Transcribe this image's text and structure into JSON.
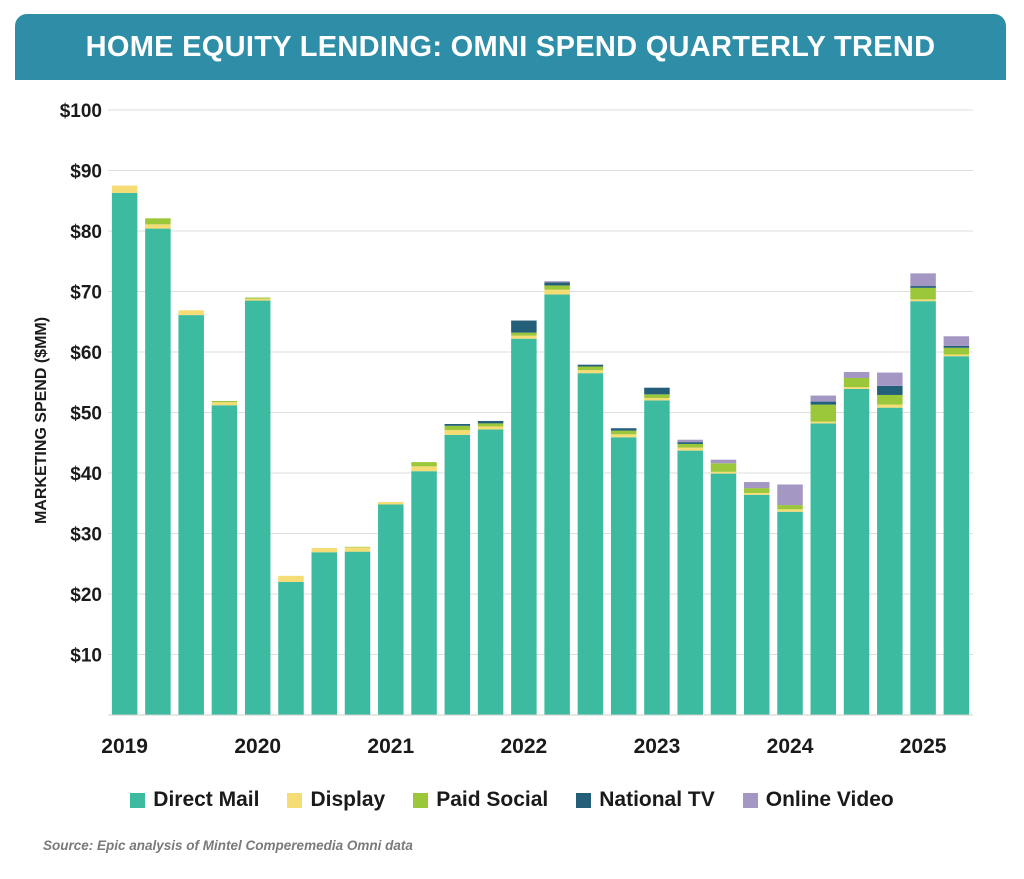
{
  "header": {
    "title": "HOME EQUITY LENDING: OMNI SPEND QUARTERLY TREND"
  },
  "source": "Source: Epic analysis of Mintel Comperemedia Omni data",
  "legend": [
    {
      "label": "Direct Mail",
      "color": "#3dbba0"
    },
    {
      "label": "Display",
      "color": "#f5dc74"
    },
    {
      "label": "Paid Social",
      "color": "#9bc83a"
    },
    {
      "label": "National TV",
      "color": "#235f78"
    },
    {
      "label": "Online Video",
      "color": "#a497c4"
    }
  ],
  "chart_data": {
    "type": "bar",
    "stacked": true,
    "title": "HOME EQUITY LENDING: OMNI SPEND QUARTERLY TREND",
    "xlabel": "",
    "ylabel": "MARKETING SPEND ($MM)",
    "ylim": [
      0,
      100
    ],
    "yticks": [
      10,
      20,
      30,
      40,
      50,
      60,
      70,
      80,
      90,
      100
    ],
    "ytick_labels": [
      "$10",
      "$20",
      "$30",
      "$40",
      "$50",
      "$60",
      "$70",
      "$80",
      "$90",
      "$100"
    ],
    "grid": true,
    "legend_position": "bottom",
    "categories": [
      "2019 Q1",
      "2019 Q2",
      "2019 Q3",
      "2019 Q4",
      "2020 Q1",
      "2020 Q2",
      "2020 Q3",
      "2020 Q4",
      "2021 Q1",
      "2021 Q2",
      "2021 Q3",
      "2021 Q4",
      "2022 Q1",
      "2022 Q2",
      "2022 Q3",
      "2022 Q4",
      "2023 Q1",
      "2023 Q2",
      "2023 Q3",
      "2023 Q4",
      "2024 Q1",
      "2024 Q2",
      "2024 Q3",
      "2024 Q4",
      "2025 Q1",
      "2025 Q2"
    ],
    "x_tick_labels": [
      {
        "label": "2019",
        "index": 0
      },
      {
        "label": "2020",
        "index": 4
      },
      {
        "label": "2021",
        "index": 8
      },
      {
        "label": "2022",
        "index": 12
      },
      {
        "label": "2023",
        "index": 16
      },
      {
        "label": "2024",
        "index": 20
      },
      {
        "label": "2025",
        "index": 24
      }
    ],
    "series": [
      {
        "name": "Direct Mail",
        "color": "#3dbba0",
        "values": [
          86.3,
          80.4,
          66.1,
          51.2,
          68.5,
          22.0,
          26.9,
          27.0,
          34.8,
          40.3,
          46.3,
          47.2,
          62.2,
          69.5,
          56.5,
          45.9,
          52.0,
          43.7,
          39.9,
          36.4,
          33.6,
          48.2,
          53.9,
          50.8,
          68.4,
          59.3
        ]
      },
      {
        "name": "Display",
        "color": "#f5dc74",
        "values": [
          1.2,
          0.7,
          0.8,
          0.5,
          0.3,
          1.0,
          0.7,
          0.7,
          0.4,
          0.8,
          0.8,
          0.5,
          0.5,
          0.8,
          0.5,
          0.5,
          0.4,
          0.5,
          0.3,
          0.3,
          0.4,
          0.3,
          0.3,
          0.5,
          0.3,
          0.3
        ]
      },
      {
        "name": "Paid Social",
        "color": "#9bc83a",
        "values": [
          0.0,
          1.0,
          0.0,
          0.2,
          0.2,
          0.0,
          0.0,
          0.1,
          0.0,
          0.7,
          0.7,
          0.5,
          0.5,
          0.7,
          0.6,
          0.6,
          0.6,
          0.6,
          1.4,
          0.8,
          0.7,
          2.8,
          1.5,
          1.6,
          1.9,
          1.1
        ]
      },
      {
        "name": "National TV",
        "color": "#235f78",
        "values": [
          0.0,
          0.0,
          0.0,
          0.0,
          0.0,
          0.0,
          0.0,
          0.0,
          0.0,
          0.0,
          0.3,
          0.4,
          2.0,
          0.5,
          0.3,
          0.4,
          1.1,
          0.3,
          0.0,
          0.0,
          0.0,
          0.5,
          0.0,
          1.5,
          0.3,
          0.3
        ]
      },
      {
        "name": "Online Video",
        "color": "#a497c4",
        "values": [
          0.0,
          0.0,
          0.0,
          0.0,
          0.0,
          0.0,
          0.0,
          0.0,
          0.0,
          0.0,
          0.0,
          0.0,
          0.0,
          0.2,
          0.0,
          0.0,
          0.0,
          0.4,
          0.6,
          1.0,
          3.4,
          1.0,
          1.0,
          2.2,
          2.1,
          1.6
        ]
      }
    ]
  }
}
